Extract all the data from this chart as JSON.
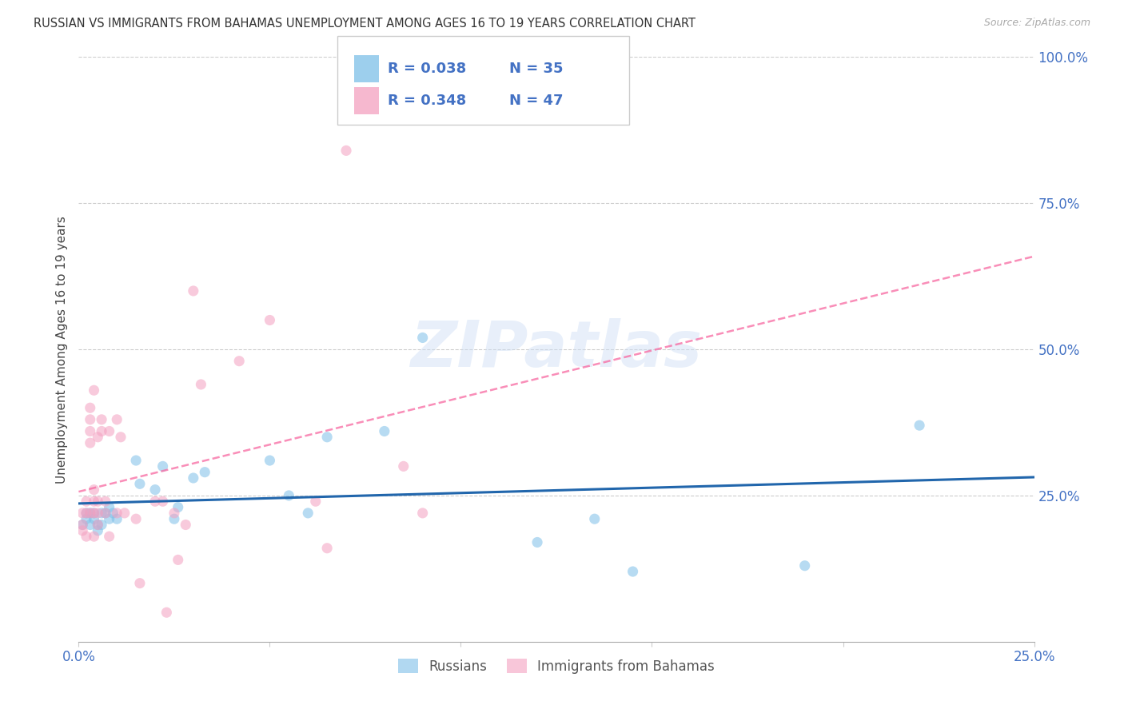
{
  "title": "RUSSIAN VS IMMIGRANTS FROM BAHAMAS UNEMPLOYMENT AMONG AGES 16 TO 19 YEARS CORRELATION CHART",
  "source": "Source: ZipAtlas.com",
  "ylabel": "Unemployment Among Ages 16 to 19 years",
  "legend_r_russian": "R = 0.038",
  "legend_n_russian": "N = 35",
  "legend_r_bahamas": "R = 0.348",
  "legend_n_bahamas": "N = 47",
  "legend_russian_label": "Russians",
  "legend_bahamas_label": "Immigrants from Bahamas",
  "watermark": "ZIPatlas",
  "russian_color": "#7dbfe8",
  "bahamas_color": "#f4a0c0",
  "russian_line_color": "#2166ac",
  "bahamas_line_color": "#f768a1",
  "tick_color": "#4472c4",
  "grid_color": "#cccccc",
  "title_color": "#333333",
  "source_color": "#aaaaaa",
  "xlim": [
    0.0,
    0.25
  ],
  "ylim": [
    0.0,
    1.0
  ],
  "russians_x": [
    0.001,
    0.002,
    0.002,
    0.003,
    0.003,
    0.004,
    0.004,
    0.005,
    0.005,
    0.006,
    0.006,
    0.007,
    0.008,
    0.008,
    0.009,
    0.01,
    0.015,
    0.016,
    0.02,
    0.022,
    0.025,
    0.026,
    0.03,
    0.033,
    0.05,
    0.055,
    0.06,
    0.065,
    0.08,
    0.09,
    0.12,
    0.135,
    0.145,
    0.19,
    0.22
  ],
  "russians_y": [
    0.2,
    0.21,
    0.22,
    0.2,
    0.22,
    0.21,
    0.22,
    0.2,
    0.19,
    0.22,
    0.2,
    0.22,
    0.23,
    0.21,
    0.22,
    0.21,
    0.31,
    0.27,
    0.26,
    0.3,
    0.21,
    0.23,
    0.28,
    0.29,
    0.31,
    0.25,
    0.22,
    0.35,
    0.36,
    0.52,
    0.17,
    0.21,
    0.12,
    0.13,
    0.37
  ],
  "bahamas_x": [
    0.001,
    0.001,
    0.001,
    0.002,
    0.002,
    0.002,
    0.003,
    0.003,
    0.003,
    0.003,
    0.003,
    0.004,
    0.004,
    0.004,
    0.004,
    0.004,
    0.005,
    0.005,
    0.005,
    0.005,
    0.006,
    0.006,
    0.007,
    0.007,
    0.008,
    0.008,
    0.01,
    0.01,
    0.011,
    0.012,
    0.015,
    0.016,
    0.02,
    0.022,
    0.023,
    0.025,
    0.026,
    0.028,
    0.03,
    0.032,
    0.042,
    0.05,
    0.062,
    0.065,
    0.07,
    0.085,
    0.09
  ],
  "bahamas_y": [
    0.22,
    0.2,
    0.19,
    0.24,
    0.22,
    0.18,
    0.36,
    0.34,
    0.38,
    0.4,
    0.22,
    0.24,
    0.26,
    0.22,
    0.18,
    0.43,
    0.24,
    0.22,
    0.2,
    0.35,
    0.36,
    0.38,
    0.24,
    0.22,
    0.18,
    0.36,
    0.38,
    0.22,
    0.35,
    0.22,
    0.21,
    0.1,
    0.24,
    0.24,
    0.05,
    0.22,
    0.14,
    0.2,
    0.6,
    0.44,
    0.48,
    0.55,
    0.24,
    0.16,
    0.84,
    0.3,
    0.22
  ]
}
